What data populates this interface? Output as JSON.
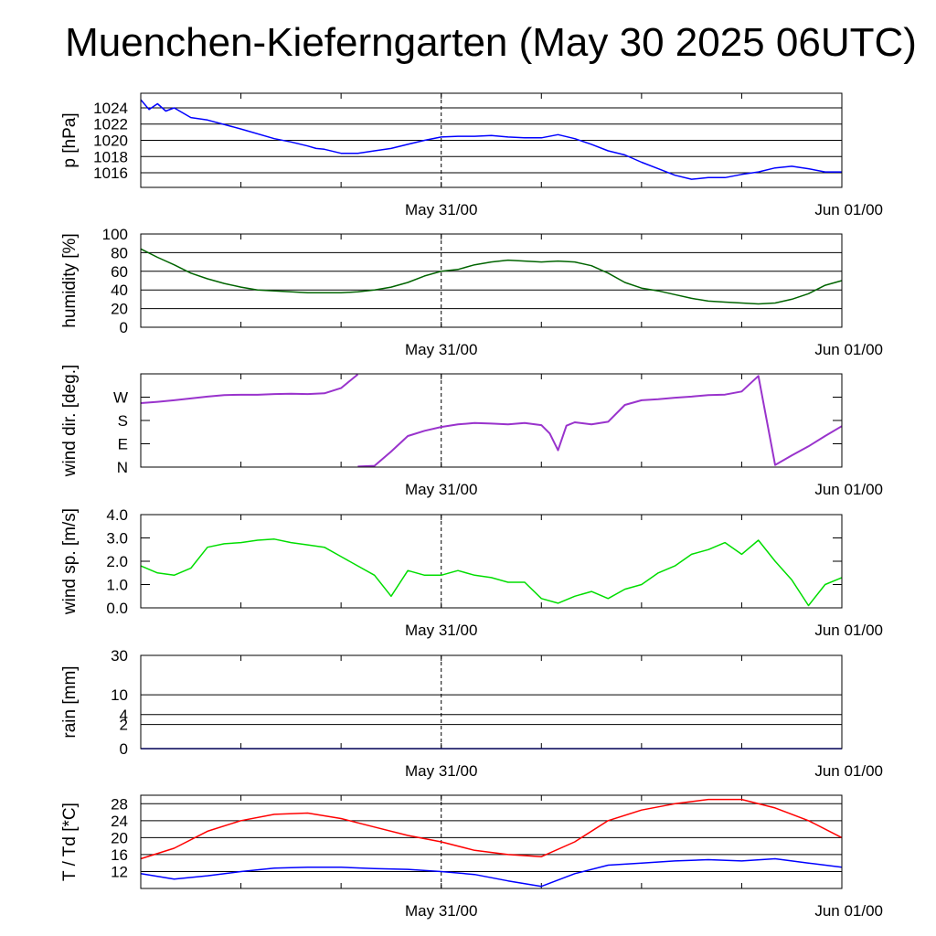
{
  "title": "Muenchen-Kieferngarten (May 30 2025 06UTC)",
  "chart_data": [
    {
      "type": "line",
      "ylabel": "p [hPa]",
      "yticks": [
        "1016",
        "1018",
        "1020",
        "1022",
        "1024"
      ],
      "ytick_values": [
        1016,
        1018,
        1020,
        1022,
        1024
      ],
      "ylim": [
        1014.2,
        1025.8
      ],
      "xlabels": [
        "May 31/00",
        "Jun 01/00"
      ],
      "grid": true,
      "series": [
        {
          "color": "#0000ff",
          "x": [
            0,
            0.5,
            1,
            1.5,
            2,
            3,
            4,
            6,
            8,
            9,
            10,
            10.5,
            11,
            12,
            13,
            14,
            15,
            16,
            17,
            18,
            19,
            20,
            21,
            22,
            23,
            24,
            25,
            26,
            27,
            28,
            29,
            30,
            31,
            32,
            33,
            34,
            35,
            36,
            37,
            38,
            39,
            40,
            41,
            42
          ],
          "values": [
            1025.0,
            1023.8,
            1024.5,
            1023.6,
            1024.0,
            1022.8,
            1022.5,
            1021.4,
            1020.2,
            1019.8,
            1019.3,
            1019.0,
            1018.9,
            1018.4,
            1018.4,
            1018.7,
            1019.0,
            1019.5,
            1020.0,
            1020.4,
            1020.5,
            1020.5,
            1020.6,
            1020.4,
            1020.3,
            1020.3,
            1020.7,
            1020.2,
            1019.5,
            1018.7,
            1018.2,
            1017.3,
            1016.5,
            1015.7,
            1015.2,
            1015.4,
            1015.4,
            1015.8,
            1016.1,
            1016.6,
            1016.8,
            1016.5,
            1016.1,
            1016.1
          ]
        }
      ]
    },
    {
      "type": "line",
      "ylabel": "humidity [%]",
      "yticks": [
        "0",
        "20",
        "40",
        "60",
        "80",
        "100"
      ],
      "ytick_values": [
        0,
        20,
        40,
        60,
        80,
        100
      ],
      "ylim": [
        0,
        100
      ],
      "xlabels": [
        "May 31/00",
        "Jun 01/00"
      ],
      "grid": true,
      "series": [
        {
          "color": "#006400",
          "x": [
            0,
            1,
            2,
            3,
            4,
            5,
            6,
            7,
            8,
            9,
            10,
            11,
            12,
            13,
            14,
            15,
            16,
            17,
            18,
            19,
            20,
            21,
            22,
            23,
            24,
            25,
            26,
            27,
            28,
            29,
            30,
            31,
            32,
            33,
            34,
            35,
            36,
            37,
            38,
            39,
            40,
            41,
            42
          ],
          "values": [
            84,
            75,
            67,
            58,
            52,
            47,
            43,
            40,
            39,
            38,
            37,
            37,
            37,
            38,
            40,
            43,
            48,
            55,
            60,
            62,
            67,
            70,
            72,
            71,
            70,
            71,
            70,
            66,
            58,
            48,
            42,
            39,
            35,
            31,
            28,
            27,
            26,
            25,
            26,
            30,
            36,
            45,
            50
          ]
        }
      ]
    },
    {
      "type": "scatter",
      "ylabel": "wind dir. [deg.]",
      "yticks": [
        "N",
        "E",
        "S",
        "W"
      ],
      "ytick_values": [
        0,
        90,
        180,
        270
      ],
      "ylim": [
        0,
        360
      ],
      "xlabels": [
        "May 31/00",
        "Jun 01/00"
      ],
      "grid": false,
      "series": [
        {
          "color": "#9933cc",
          "segments": [
            {
              "x": [
                0,
                1,
                2,
                3,
                4,
                5,
                6,
                7,
                8,
                9,
                10,
                11,
                12,
                13
              ],
              "values": [
                247,
                252,
                258,
                265,
                272,
                278,
                279,
                279,
                282,
                283,
                282,
                285,
                305,
                358
              ]
            },
            {
              "x": [
                13,
                14,
                15,
                16,
                17,
                18,
                19,
                20,
                21,
                22,
                23,
                24,
                24.5,
                25,
                25.5,
                26,
                27,
                28,
                29,
                30,
                31,
                32,
                33,
                34,
                35,
                36,
                37,
                38,
                39,
                40,
                41,
                42
              ],
              "values": [
                2,
                5,
                60,
                120,
                140,
                155,
                165,
                170,
                168,
                165,
                170,
                162,
                130,
                65,
                160,
                173,
                165,
                175,
                240,
                258,
                262,
                268,
                272,
                278,
                280,
                292,
                352,
                8,
                45,
                80,
                120,
                158
              ]
            }
          ]
        }
      ]
    },
    {
      "type": "line",
      "ylabel": "wind sp. [m/s]",
      "yticks": [
        "0.0",
        "1.0",
        "2.0",
        "3.0",
        "4.0"
      ],
      "ytick_values": [
        0,
        1,
        2,
        3,
        4
      ],
      "ylim": [
        0,
        4
      ],
      "xlabels": [
        "May 31/00",
        "Jun 01/00"
      ],
      "grid": false,
      "series": [
        {
          "color": "#00dd00",
          "x": [
            0,
            1,
            2,
            3,
            4,
            5,
            6,
            7,
            8,
            9,
            10,
            11,
            12,
            13,
            14,
            15,
            16,
            17,
            18,
            19,
            20,
            21,
            22,
            23,
            24,
            25,
            26,
            27,
            28,
            29,
            30,
            31,
            32,
            33,
            34,
            35,
            36,
            37,
            38,
            39,
            40,
            41,
            42
          ],
          "values": [
            1.8,
            1.5,
            1.4,
            1.7,
            2.6,
            2.75,
            2.8,
            2.9,
            2.95,
            2.8,
            2.7,
            2.6,
            2.2,
            1.8,
            1.4,
            0.5,
            1.6,
            1.4,
            1.4,
            1.6,
            1.4,
            1.3,
            1.1,
            1.1,
            0.4,
            0.2,
            0.5,
            0.7,
            0.4,
            0.8,
            1.0,
            1.5,
            1.8,
            2.3,
            2.5,
            2.8,
            2.3,
            2.9,
            2.0,
            1.2,
            0.1,
            1.0,
            1.3
          ]
        }
      ]
    },
    {
      "type": "line",
      "ylabel": "rain [mm]",
      "yticks": [
        "0",
        "2",
        "4",
        "10",
        "30"
      ],
      "ytick_values": [
        0,
        2,
        4,
        10,
        30
      ],
      "ylim": [
        0,
        30
      ],
      "scale": "sqrt",
      "xlabels": [
        "May 31/00",
        "Jun 01/00"
      ],
      "grid": true,
      "series": [
        {
          "color": "#0000ff",
          "x": [
            0,
            42
          ],
          "values": [
            0,
            0
          ]
        }
      ]
    },
    {
      "type": "line",
      "ylabel": "T / Td [*C]",
      "yticks": [
        "12",
        "16",
        "20",
        "24",
        "28"
      ],
      "ytick_values": [
        12,
        16,
        20,
        24,
        28
      ],
      "ylim": [
        8,
        30
      ],
      "xlabels": [
        "May 31/00",
        "Jun 01/00"
      ],
      "grid": true,
      "series": [
        {
          "name": "T",
          "color": "#ff0000",
          "x": [
            0,
            2,
            4,
            6,
            8,
            10,
            12,
            14,
            16,
            18,
            20,
            22,
            24,
            26,
            28,
            30,
            32,
            34,
            36,
            38,
            40,
            42
          ],
          "values": [
            15,
            17.5,
            21.5,
            24,
            25.5,
            25.8,
            24.5,
            22.5,
            20.5,
            19,
            17,
            16,
            15.5,
            19,
            24,
            26.5,
            28,
            29,
            29,
            27,
            24,
            20
          ]
        },
        {
          "name": "Td",
          "color": "#0000ff",
          "x": [
            0,
            2,
            4,
            6,
            8,
            10,
            12,
            14,
            16,
            18,
            20,
            22,
            24,
            26,
            28,
            30,
            32,
            34,
            36,
            38,
            40,
            42
          ],
          "values": [
            11.5,
            10.2,
            11,
            12,
            12.8,
            13,
            13,
            12.7,
            12.5,
            12,
            11.3,
            9.8,
            8.5,
            11.5,
            13.5,
            14,
            14.5,
            14.8,
            14.5,
            15,
            14,
            13
          ]
        }
      ]
    }
  ]
}
